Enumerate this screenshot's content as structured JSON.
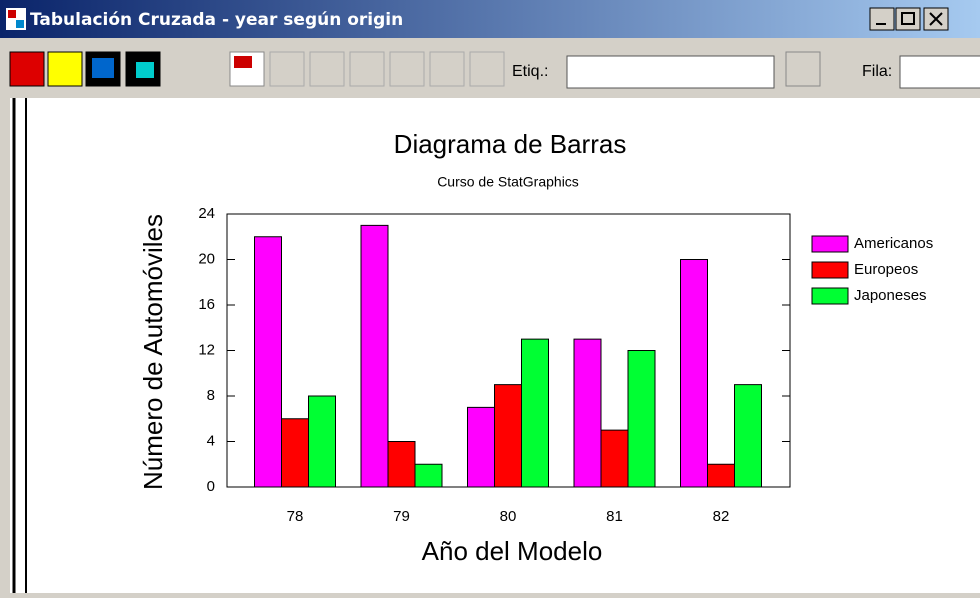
{
  "window": {
    "title": "Tabulación Cruzada - year según origin"
  },
  "toolbar": {
    "label_field": "Etiq.:",
    "row_field": "Fila:"
  },
  "chart_data": {
    "type": "bar",
    "title": "Diagrama de Barras",
    "subtitle": "Curso de StatGraphics",
    "x_label": "Año del Modelo",
    "y_label": "Número de Automóviles",
    "categories": [
      "78",
      "79",
      "80",
      "81",
      "82"
    ],
    "series": [
      {
        "name": "Americanos",
        "color": "#ff00ff",
        "values": [
          22,
          23,
          7,
          13,
          20
        ]
      },
      {
        "name": "Europeos",
        "color": "#ff0000",
        "values": [
          6,
          4,
          9,
          5,
          2
        ]
      },
      {
        "name": "Japoneses",
        "color": "#00ff33",
        "values": [
          8,
          2,
          13,
          12,
          9
        ]
      }
    ],
    "ylim": [
      0,
      24
    ],
    "yticks": [
      0,
      4,
      8,
      12,
      16,
      20,
      24
    ]
  }
}
